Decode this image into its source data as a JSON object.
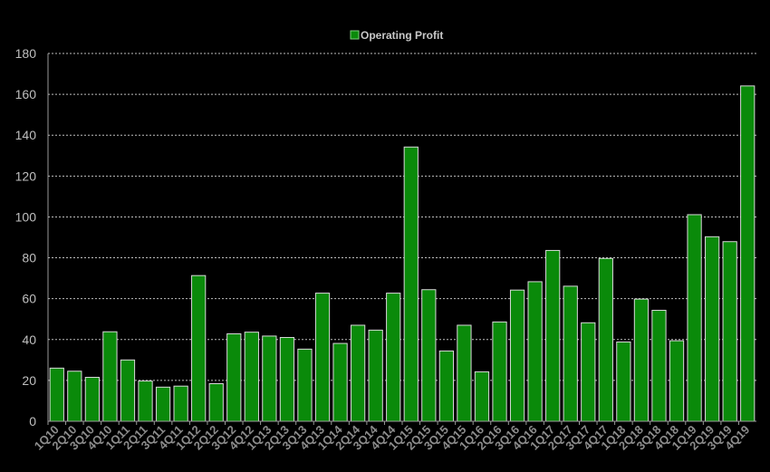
{
  "chart_data": {
    "type": "bar",
    "legend": {
      "label": "Operating Profit",
      "position": "top-center"
    },
    "ylim": [
      0,
      180
    ],
    "yticks": [
      0,
      20,
      40,
      60,
      80,
      100,
      120,
      140,
      160,
      180
    ],
    "grid": true,
    "bar_color": "#0a8a0a",
    "categories": [
      "1Q10",
      "2Q10",
      "3Q10",
      "4Q10",
      "1Q11",
      "2Q11",
      "3Q11",
      "4Q11",
      "1Q12",
      "2Q12",
      "3Q12",
      "4Q12",
      "1Q13",
      "2Q13",
      "3Q13",
      "4Q13",
      "1Q14",
      "2Q14",
      "3Q14",
      "4Q14",
      "1Q15",
      "2Q15",
      "3Q15",
      "4Q15",
      "1Q16",
      "2Q16",
      "3Q16",
      "4Q16",
      "1Q17",
      "2Q17",
      "3Q17",
      "4Q17",
      "1Q18",
      "2Q18",
      "3Q18",
      "4Q18",
      "1Q19",
      "2Q19",
      "3Q19",
      "4Q19"
    ],
    "values": [
      26,
      24.5,
      21.5,
      43.8,
      30,
      19.7,
      16.7,
      17.2,
      71.3,
      18.4,
      42.8,
      43.6,
      41.7,
      41,
      35.3,
      62.7,
      38.1,
      47,
      44.6,
      62.7,
      134.2,
      64.4,
      34.4,
      47,
      24.2,
      48.6,
      64.2,
      68.3,
      83.6,
      66.1,
      48.2,
      79.7,
      38.8,
      59.8,
      54.3,
      39.4,
      101.1,
      90.3,
      87.9,
      164.1
    ]
  }
}
